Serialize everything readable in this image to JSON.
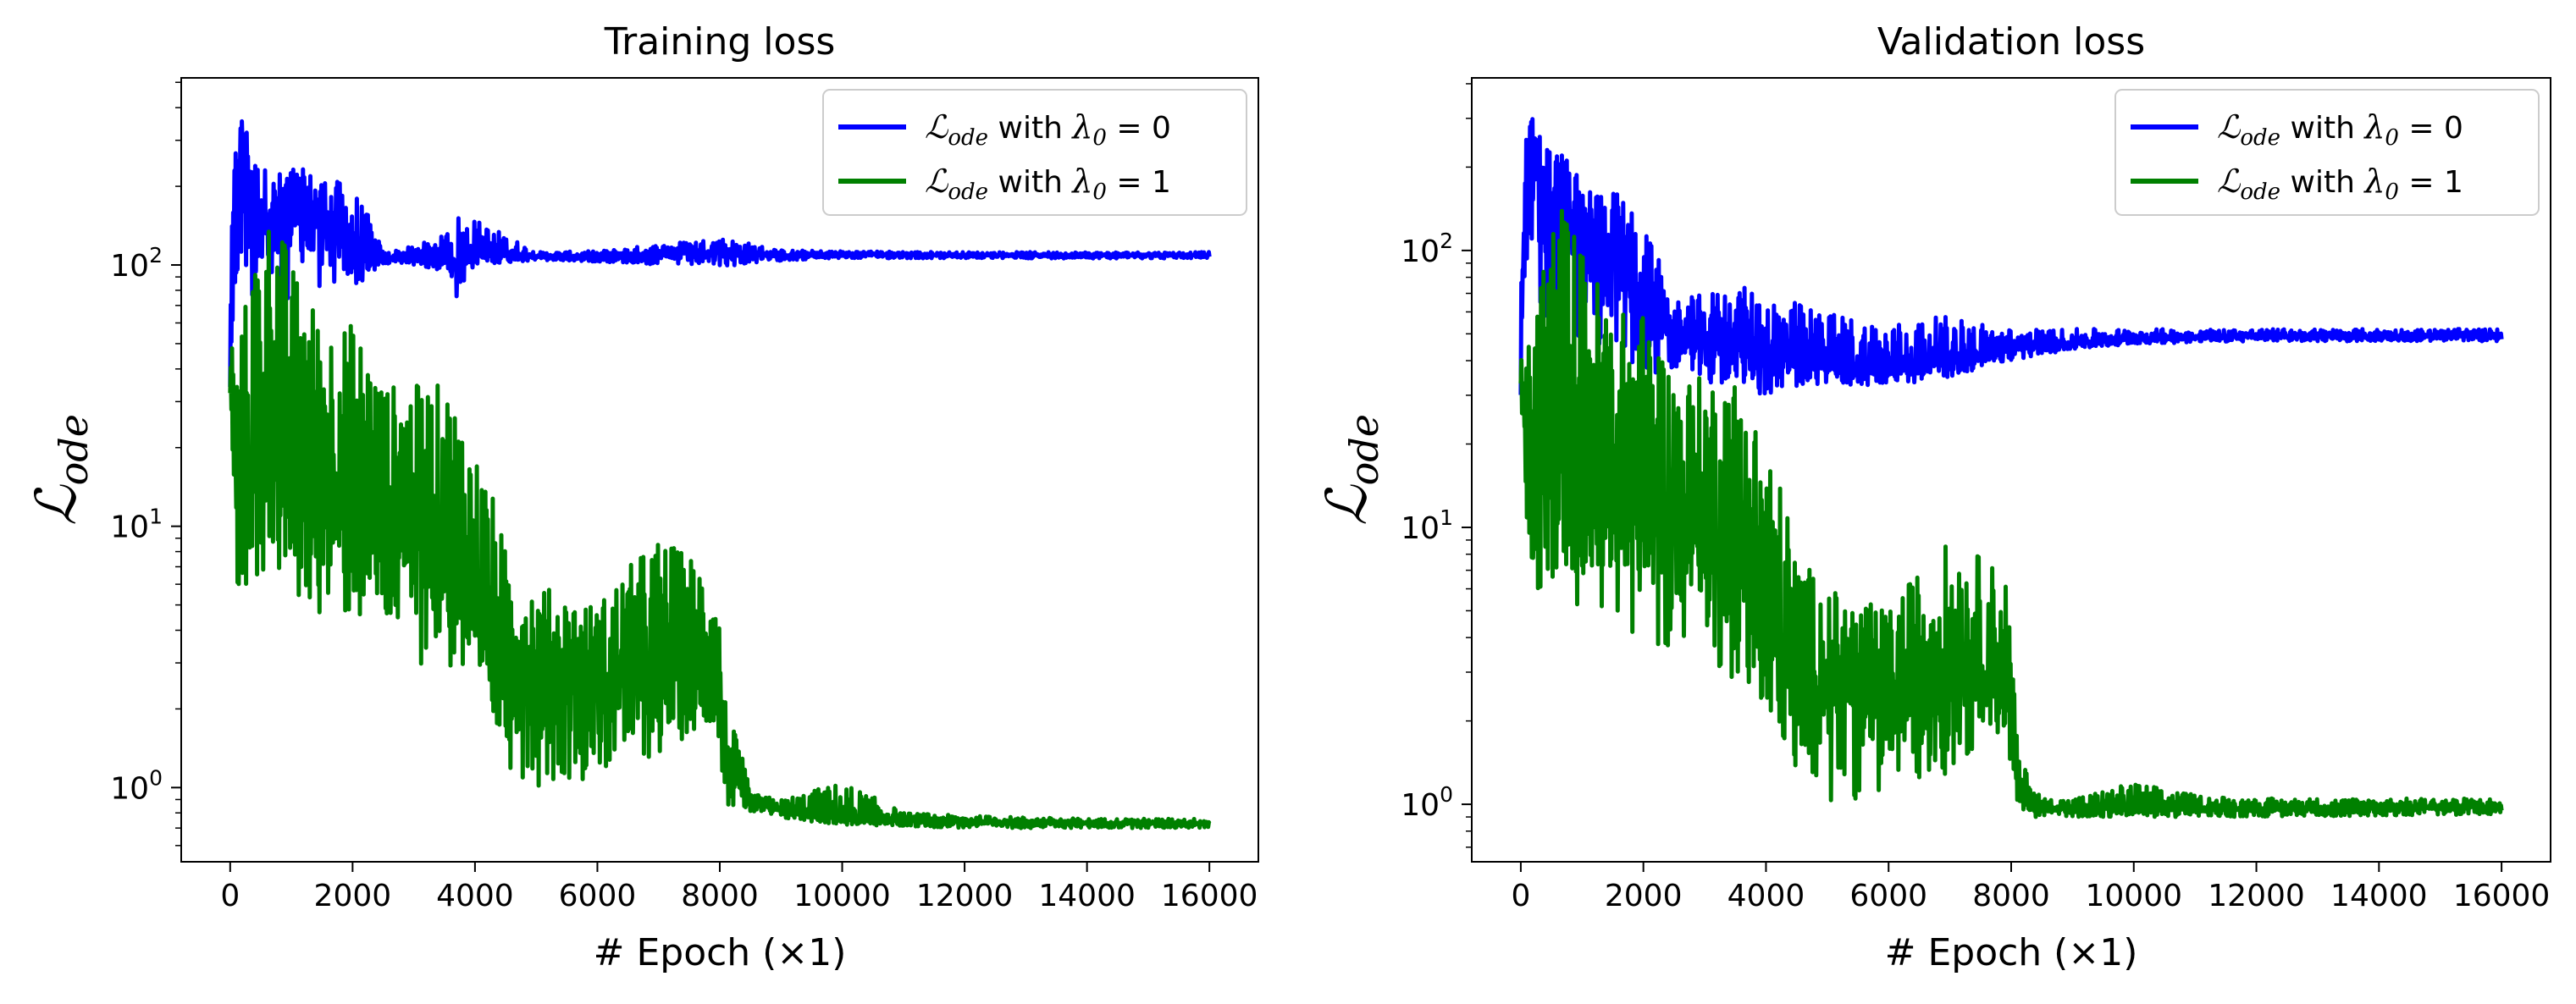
{
  "chart_data": [
    {
      "type": "line",
      "title": "Training loss",
      "xlabel": "# Epoch (×1)",
      "ylabel": "ℒ",
      "ylabel_sub": "ode",
      "yscale": "log",
      "xlim": [
        -800,
        16800
      ],
      "ylim": [
        0.52,
        520
      ],
      "xticks": [
        0,
        2000,
        4000,
        6000,
        8000,
        10000,
        12000,
        14000,
        16000
      ],
      "yticks": [
        {
          "base": "10",
          "exp": "0",
          "value": 1
        },
        {
          "base": "10",
          "exp": "1",
          "value": 10
        },
        {
          "base": "10",
          "exp": "2",
          "value": 100
        }
      ],
      "legend_position": "top-right",
      "series": [
        {
          "name": "ℒode with λ0 = 0",
          "legend_math": "ℒ",
          "legend_sub": "ode",
          "legend_mid": " with ",
          "legend_lambda": "λ",
          "legend_lsub": "0",
          "legend_rhs": " = 0",
          "color": "#0000ff",
          "x": [
            0,
            100,
            200,
            400,
            700,
            1000,
            1500,
            2000,
            2500,
            3000,
            3500,
            3700,
            4000,
            5000,
            6000,
            7000,
            8000,
            9000,
            10000,
            12000,
            14000,
            16000
          ],
          "y": [
            55,
            180,
            300,
            160,
            150,
            170,
            150,
            110,
            105,
            108,
            112,
            95,
            110,
            108,
            107,
            110,
            112,
            108,
            110,
            109,
            109,
            109
          ],
          "y_low": [
            14,
            40,
            80,
            70,
            70,
            75,
            80,
            80,
            100,
            100,
            95,
            70,
            100,
            104,
            103,
            100,
            98,
            104,
            106,
            106,
            106,
            106
          ],
          "y_high": [
            60,
            330,
            380,
            260,
            220,
            240,
            220,
            200,
            112,
            118,
            130,
            160,
            150,
            112,
            113,
            120,
            128,
            114,
            113,
            112,
            112,
            112
          ]
        },
        {
          "name": "ℒode with λ0 = 1",
          "legend_math": "ℒ",
          "legend_sub": "ode",
          "legend_mid": " with ",
          "legend_lambda": "λ",
          "legend_lsub": "0",
          "legend_rhs": " = 1",
          "color": "#008000",
          "x": [
            0,
            100,
            200,
            400,
            700,
            1000,
            1500,
            2000,
            2500,
            3000,
            3500,
            4000,
            4500,
            5000,
            6000,
            7000,
            7900,
            8100,
            8500,
            9000,
            10000,
            11000,
            12000,
            14000,
            16000
          ],
          "y": [
            40,
            12,
            10,
            15,
            20,
            12,
            11,
            12,
            10,
            9,
            8,
            4,
            2.8,
            2.5,
            2.4,
            2.6,
            3,
            1.2,
            0.88,
            0.82,
            0.76,
            0.75,
            0.74,
            0.73,
            0.73
          ],
          "y_low": [
            14,
            6,
            5,
            6,
            6,
            5,
            4.5,
            4,
            3.5,
            3,
            2.8,
            2,
            1.2,
            1,
            1.1,
            1.3,
            1.8,
            0.85,
            0.8,
            0.76,
            0.72,
            0.71,
            0.7,
            0.7,
            0.7
          ],
          "y_high": [
            60,
            40,
            60,
            110,
            165,
            100,
            60,
            60,
            35,
            35,
            35,
            20,
            8,
            6,
            5,
            9,
            7,
            2,
            0.95,
            0.9,
            1.05,
            0.8,
            0.78,
            0.76,
            0.76
          ]
        }
      ]
    },
    {
      "type": "line",
      "title": "Validation loss",
      "xlabel": "# Epoch (×1)",
      "ylabel": "ℒ",
      "ylabel_sub": "ode",
      "yscale": "log",
      "xlim": [
        -800,
        16800
      ],
      "ylim": [
        0.62,
        420
      ],
      "xticks": [
        0,
        2000,
        4000,
        6000,
        8000,
        10000,
        12000,
        14000,
        16000
      ],
      "yticks": [
        {
          "base": "10",
          "exp": "0",
          "value": 1
        },
        {
          "base": "10",
          "exp": "1",
          "value": 10
        },
        {
          "base": "10",
          "exp": "2",
          "value": 100
        }
      ],
      "legend_position": "top-right",
      "series": [
        {
          "name": "ℒode with λ0 = 0",
          "legend_math": "ℒ",
          "legend_sub": "ode",
          "legend_mid": " with ",
          "legend_lambda": "λ",
          "legend_lsub": "0",
          "legend_rhs": " = 0",
          "color": "#0000ff",
          "x": [
            0,
            100,
            200,
            400,
            700,
            1000,
            1500,
            2000,
            2500,
            3000,
            3500,
            4000,
            5000,
            6000,
            7000,
            8000,
            9000,
            10000,
            12000,
            14000,
            16000
          ],
          "y": [
            50,
            150,
            250,
            140,
            120,
            110,
            100,
            60,
            48,
            45,
            48,
            42,
            38,
            36,
            40,
            44,
            46,
            48,
            49,
            49,
            49
          ],
          "y_low": [
            14,
            40,
            60,
            50,
            45,
            45,
            40,
            35,
            38,
            33,
            32,
            30,
            33,
            32,
            35,
            40,
            44,
            46,
            47,
            47,
            47
          ],
          "y_high": [
            55,
            280,
            320,
            250,
            230,
            170,
            170,
            120,
            65,
            70,
            75,
            70,
            60,
            55,
            58,
            52,
            52,
            52,
            52,
            52,
            52
          ]
        },
        {
          "name": "ℒode with λ0 = 1",
          "legend_math": "ℒ",
          "legend_sub": "ode",
          "legend_mid": " with ",
          "legend_lambda": "λ",
          "legend_lsub": "0",
          "legend_rhs": " = 1",
          "color": "#008000",
          "x": [
            0,
            100,
            200,
            400,
            700,
            1000,
            1500,
            2000,
            2500,
            3000,
            3500,
            4000,
            4500,
            5000,
            6000,
            7000,
            7900,
            8100,
            8500,
            9000,
            10000,
            11000,
            12000,
            14000,
            16000
          ],
          "y": [
            40,
            12,
            10,
            15,
            20,
            12,
            11,
            12,
            10,
            9,
            8,
            4,
            2.8,
            2.5,
            2.4,
            2.6,
            3,
            1.1,
            0.97,
            0.96,
            0.97,
            0.96,
            0.96,
            0.97,
            0.98
          ],
          "y_low": [
            14,
            6,
            5,
            6,
            6,
            5,
            4.5,
            4,
            3.5,
            3,
            2.8,
            2,
            1.2,
            1,
            1.1,
            1.3,
            1.8,
            0.9,
            0.9,
            0.9,
            0.9,
            0.9,
            0.9,
            0.91,
            0.92
          ],
          "y_high": [
            60,
            40,
            60,
            110,
            150,
            100,
            60,
            60,
            35,
            35,
            35,
            20,
            8,
            6,
            5,
            9,
            7,
            1.5,
            1.05,
            1.05,
            1.2,
            1.08,
            1.05,
            1.05,
            1.05
          ]
        }
      ]
    }
  ]
}
